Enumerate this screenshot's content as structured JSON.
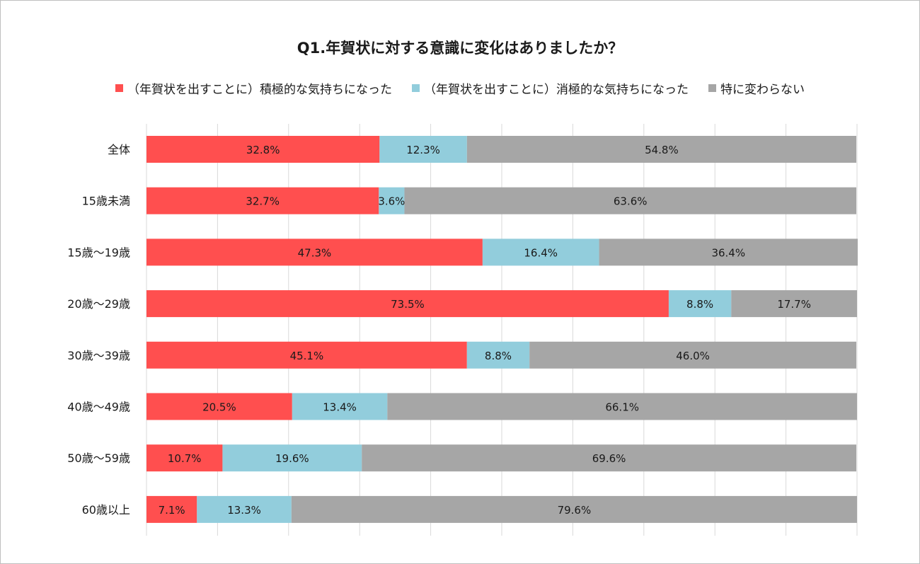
{
  "chart_data": {
    "type": "bar",
    "orientation": "horizontal",
    "stacked": true,
    "percent_stacked": true,
    "title": "Q1.年賀状に対する意識に変化はありましたか？",
    "categories": [
      "全体",
      "15歳未満",
      "15歳～19歳",
      "20歳～29歳",
      "30歳～39歳",
      "40歳～49歳",
      "50歳～59歳",
      "60歳以上"
    ],
    "series": [
      {
        "name": "（年賀状を出すことに）積極的な気持ちになった",
        "color": "#ff4f4f",
        "values": [
          32.8,
          32.7,
          47.3,
          73.5,
          45.1,
          20.5,
          10.7,
          7.1
        ],
        "labels": [
          "32.8%",
          "32.7%",
          "47.3%",
          "73.5%",
          "45.1%",
          "20.5%",
          "10.7%",
          "7.1%"
        ]
      },
      {
        "name": "（年賀状を出すことに）消極的な気持ちになった",
        "color": "#92cddc",
        "values": [
          12.3,
          3.6,
          16.4,
          8.8,
          8.8,
          13.4,
          19.6,
          13.3
        ],
        "labels": [
          "12.3%",
          "3.6%",
          "16.4%",
          "8.8%",
          "8.8%",
          "13.4%",
          "19.6%",
          "13.3%"
        ]
      },
      {
        "name": "特に変わらない",
        "color": "#a6a6a6",
        "values": [
          54.8,
          63.6,
          36.4,
          17.7,
          46.0,
          66.1,
          69.6,
          79.6
        ],
        "labels": [
          "54.8%",
          "63.6%",
          "36.4%",
          "17.7%",
          "46.0%",
          "66.1%",
          "69.6%",
          "79.6%"
        ]
      }
    ],
    "xlim": [
      0,
      100
    ],
    "grid": true,
    "legend_position": "top"
  }
}
